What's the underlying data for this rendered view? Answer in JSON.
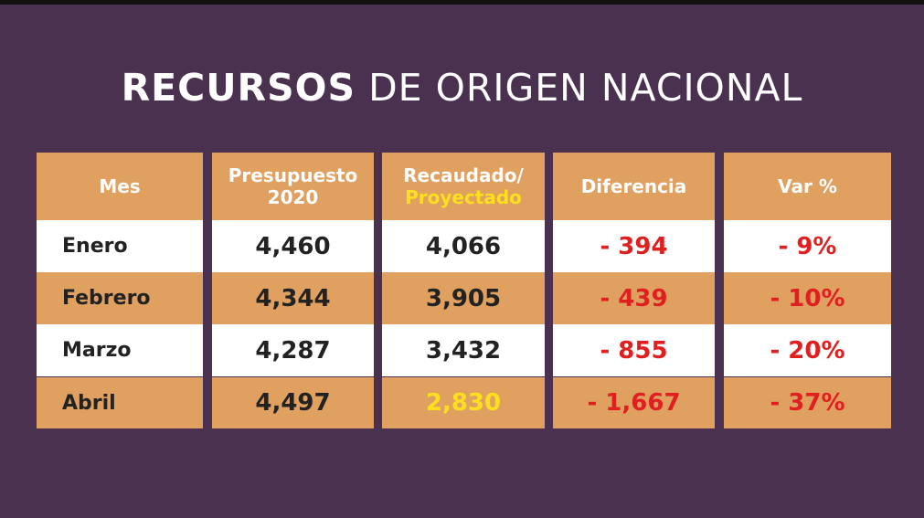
{
  "title": {
    "bold": "RECURSOS",
    "rest": "DE ORIGEN NACIONAL"
  },
  "colors": {
    "background": "#4a3150",
    "accent": "#e0a060",
    "negative": "#e02020",
    "highlight": "#ffe020"
  },
  "table": {
    "headers": {
      "mes": "Mes",
      "presupuesto_1": "Presupuesto",
      "presupuesto_2": "2020",
      "recaudado_1": "Recaudado/",
      "recaudado_2": "Proyectado",
      "diferencia": "Diferencia",
      "var": "Var %"
    },
    "rows": [
      {
        "mes": "Enero",
        "presupuesto": "4,460",
        "recaudado": "4,066",
        "diferencia": "- 394",
        "var": "- 9%"
      },
      {
        "mes": "Febrero",
        "presupuesto": "4,344",
        "recaudado": "3,905",
        "diferencia": "- 439",
        "var": "- 10%"
      },
      {
        "mes": "Marzo",
        "presupuesto": "4,287",
        "recaudado": "3,432",
        "diferencia": "- 855",
        "var": "- 20%"
      },
      {
        "mes": "Abril",
        "presupuesto": "4,497",
        "recaudado": "2,830",
        "diferencia": "- 1,667",
        "var": "- 37%"
      }
    ]
  }
}
